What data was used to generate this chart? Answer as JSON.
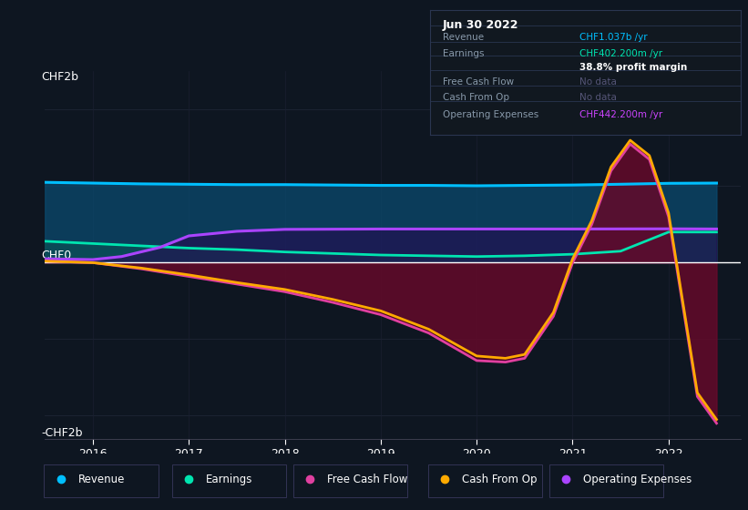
{
  "bg_color": "#0e1621",
  "plot_bg_color": "#0e1621",
  "ylabel_top": "CHF2b",
  "ylabel_zero": "CHF0",
  "ylabel_bottom": "-CHF2b",
  "xlim": [
    2015.5,
    2022.75
  ],
  "ylim": [
    -2.3,
    2.5
  ],
  "xticks": [
    2016,
    2017,
    2018,
    2019,
    2020,
    2021,
    2022
  ],
  "legend_items": [
    {
      "label": "Revenue",
      "color": "#00bfff"
    },
    {
      "label": "Earnings",
      "color": "#00e5b0"
    },
    {
      "label": "Free Cash Flow",
      "color": "#e040a0"
    },
    {
      "label": "Cash From Op",
      "color": "#ffaa00"
    },
    {
      "label": "Operating Expenses",
      "color": "#aa44ff"
    }
  ],
  "infobox": {
    "title": "Jun 30 2022",
    "rows": [
      {
        "label": "Revenue",
        "value": "CHF1.037b /yr",
        "value_color": "#00bfff"
      },
      {
        "label": "Earnings",
        "value": "CHF402.200m /yr",
        "value_color": "#00e5b0"
      },
      {
        "label": "",
        "value": "38.8% profit margin",
        "value_color": "#ffffff",
        "bold": true
      },
      {
        "label": "Free Cash Flow",
        "value": "No data",
        "value_color": "#555577"
      },
      {
        "label": "Cash From Op",
        "value": "No data",
        "value_color": "#555577"
      },
      {
        "label": "Operating Expenses",
        "value": "CHF442.200m /yr",
        "value_color": "#cc44ff"
      }
    ]
  },
  "revenue": {
    "x": [
      2015.5,
      2016,
      2016.5,
      2017,
      2017.5,
      2018,
      2018.5,
      2019,
      2019.5,
      2020,
      2020.5,
      2021,
      2021.5,
      2022,
      2022.5
    ],
    "y": [
      1.05,
      1.04,
      1.03,
      1.025,
      1.02,
      1.02,
      1.015,
      1.01,
      1.01,
      1.005,
      1.01,
      1.015,
      1.025,
      1.037,
      1.04
    ],
    "color": "#00bfff",
    "lw": 2.2
  },
  "earnings": {
    "x": [
      2015.5,
      2016,
      2016.5,
      2017,
      2017.5,
      2018,
      2018.5,
      2019,
      2019.5,
      2020,
      2020.5,
      2021,
      2021.5,
      2022,
      2022.5
    ],
    "y": [
      0.28,
      0.25,
      0.22,
      0.19,
      0.17,
      0.14,
      0.12,
      0.1,
      0.09,
      0.08,
      0.09,
      0.11,
      0.15,
      0.4,
      0.4
    ],
    "color": "#00e5b0",
    "lw": 2.0
  },
  "free_cash_flow": {
    "x": [
      2015.5,
      2016,
      2016.5,
      2017,
      2017.5,
      2018,
      2018.5,
      2019,
      2019.5,
      2020,
      2020.3,
      2020.5,
      2020.8,
      2021,
      2021.2,
      2021.4,
      2021.6,
      2021.8,
      2022,
      2022.3,
      2022.5
    ],
    "y": [
      0.02,
      0.0,
      -0.08,
      -0.18,
      -0.28,
      -0.38,
      -0.52,
      -0.68,
      -0.92,
      -1.28,
      -1.3,
      -1.25,
      -0.7,
      0.0,
      0.5,
      1.2,
      1.55,
      1.35,
      0.6,
      -1.75,
      -2.1
    ],
    "color": "#e040a0",
    "lw": 2.0
  },
  "cash_from_op": {
    "x": [
      2015.5,
      2016,
      2016.5,
      2017,
      2017.5,
      2018,
      2018.5,
      2019,
      2019.5,
      2020,
      2020.3,
      2020.5,
      2020.8,
      2021,
      2021.2,
      2021.4,
      2021.6,
      2021.8,
      2022,
      2022.3,
      2022.5
    ],
    "y": [
      0.02,
      0.0,
      -0.07,
      -0.16,
      -0.26,
      -0.35,
      -0.48,
      -0.63,
      -0.87,
      -1.22,
      -1.25,
      -1.2,
      -0.65,
      0.05,
      0.55,
      1.25,
      1.6,
      1.4,
      0.65,
      -1.7,
      -2.05
    ],
    "color": "#ffaa00",
    "lw": 2.0
  },
  "op_expenses": {
    "x": [
      2015.5,
      2016,
      2016.3,
      2016.7,
      2017,
      2017.5,
      2018,
      2019,
      2020,
      2021,
      2022,
      2022.5
    ],
    "y": [
      0.05,
      0.04,
      0.08,
      0.2,
      0.35,
      0.41,
      0.435,
      0.44,
      0.44,
      0.44,
      0.4422,
      0.44
    ],
    "color": "#aa44ff",
    "lw": 2.2
  }
}
